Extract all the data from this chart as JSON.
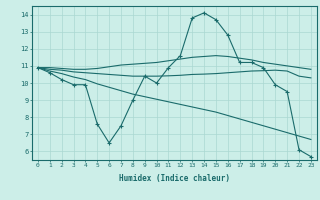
{
  "xlabel": "Humidex (Indice chaleur)",
  "background_color": "#cceee8",
  "grid_color": "#aad8d2",
  "line_color": "#1a6b6b",
  "xlim": [
    -0.5,
    23.5
  ],
  "ylim": [
    5.5,
    14.5
  ],
  "yticks": [
    6,
    7,
    8,
    9,
    10,
    11,
    12,
    13,
    14
  ],
  "xticks": [
    0,
    1,
    2,
    3,
    4,
    5,
    6,
    7,
    8,
    9,
    10,
    11,
    12,
    13,
    14,
    15,
    16,
    17,
    18,
    19,
    20,
    21,
    22,
    23
  ],
  "series": [
    {
      "x": [
        0,
        1,
        2,
        3,
        4,
        5,
        6,
        7,
        8,
        9,
        10,
        11,
        12,
        13,
        14,
        15,
        16,
        17,
        18,
        19,
        20,
        21,
        22,
        23
      ],
      "y": [
        10.9,
        10.6,
        10.2,
        9.9,
        9.9,
        7.6,
        6.5,
        7.5,
        9.0,
        10.4,
        10.0,
        10.9,
        11.6,
        13.8,
        14.1,
        13.7,
        12.8,
        11.2,
        11.2,
        10.9,
        9.9,
        9.5,
        6.1,
        5.7
      ],
      "marker": "+"
    },
    {
      "x": [
        0,
        1,
        2,
        3,
        4,
        5,
        6,
        7,
        8,
        9,
        10,
        11,
        12,
        13,
        14,
        15,
        16,
        17,
        18,
        19,
        20,
        21,
        22,
        23
      ],
      "y": [
        10.9,
        10.8,
        10.75,
        10.65,
        10.6,
        10.55,
        10.5,
        10.45,
        10.4,
        10.4,
        10.4,
        10.42,
        10.45,
        10.5,
        10.52,
        10.55,
        10.6,
        10.65,
        10.7,
        10.72,
        10.75,
        10.7,
        10.4,
        10.3
      ],
      "marker": null
    },
    {
      "x": [
        0,
        1,
        2,
        3,
        4,
        5,
        6,
        7,
        8,
        9,
        10,
        11,
        12,
        13,
        14,
        15,
        16,
        17,
        18,
        19,
        20,
        21,
        22,
        23
      ],
      "y": [
        10.9,
        10.7,
        10.55,
        10.35,
        10.2,
        9.95,
        9.75,
        9.55,
        9.35,
        9.2,
        9.05,
        8.9,
        8.75,
        8.6,
        8.45,
        8.3,
        8.1,
        7.9,
        7.7,
        7.5,
        7.3,
        7.1,
        6.9,
        6.7
      ],
      "marker": null
    },
    {
      "x": [
        0,
        1,
        2,
        3,
        4,
        5,
        6,
        7,
        8,
        9,
        10,
        11,
        12,
        13,
        14,
        15,
        16,
        17,
        18,
        19,
        20,
        21,
        22,
        23
      ],
      "y": [
        10.9,
        10.9,
        10.85,
        10.8,
        10.8,
        10.85,
        10.95,
        11.05,
        11.1,
        11.15,
        11.2,
        11.3,
        11.4,
        11.5,
        11.55,
        11.6,
        11.55,
        11.45,
        11.35,
        11.2,
        11.1,
        11.0,
        10.9,
        10.8
      ],
      "marker": null
    }
  ]
}
